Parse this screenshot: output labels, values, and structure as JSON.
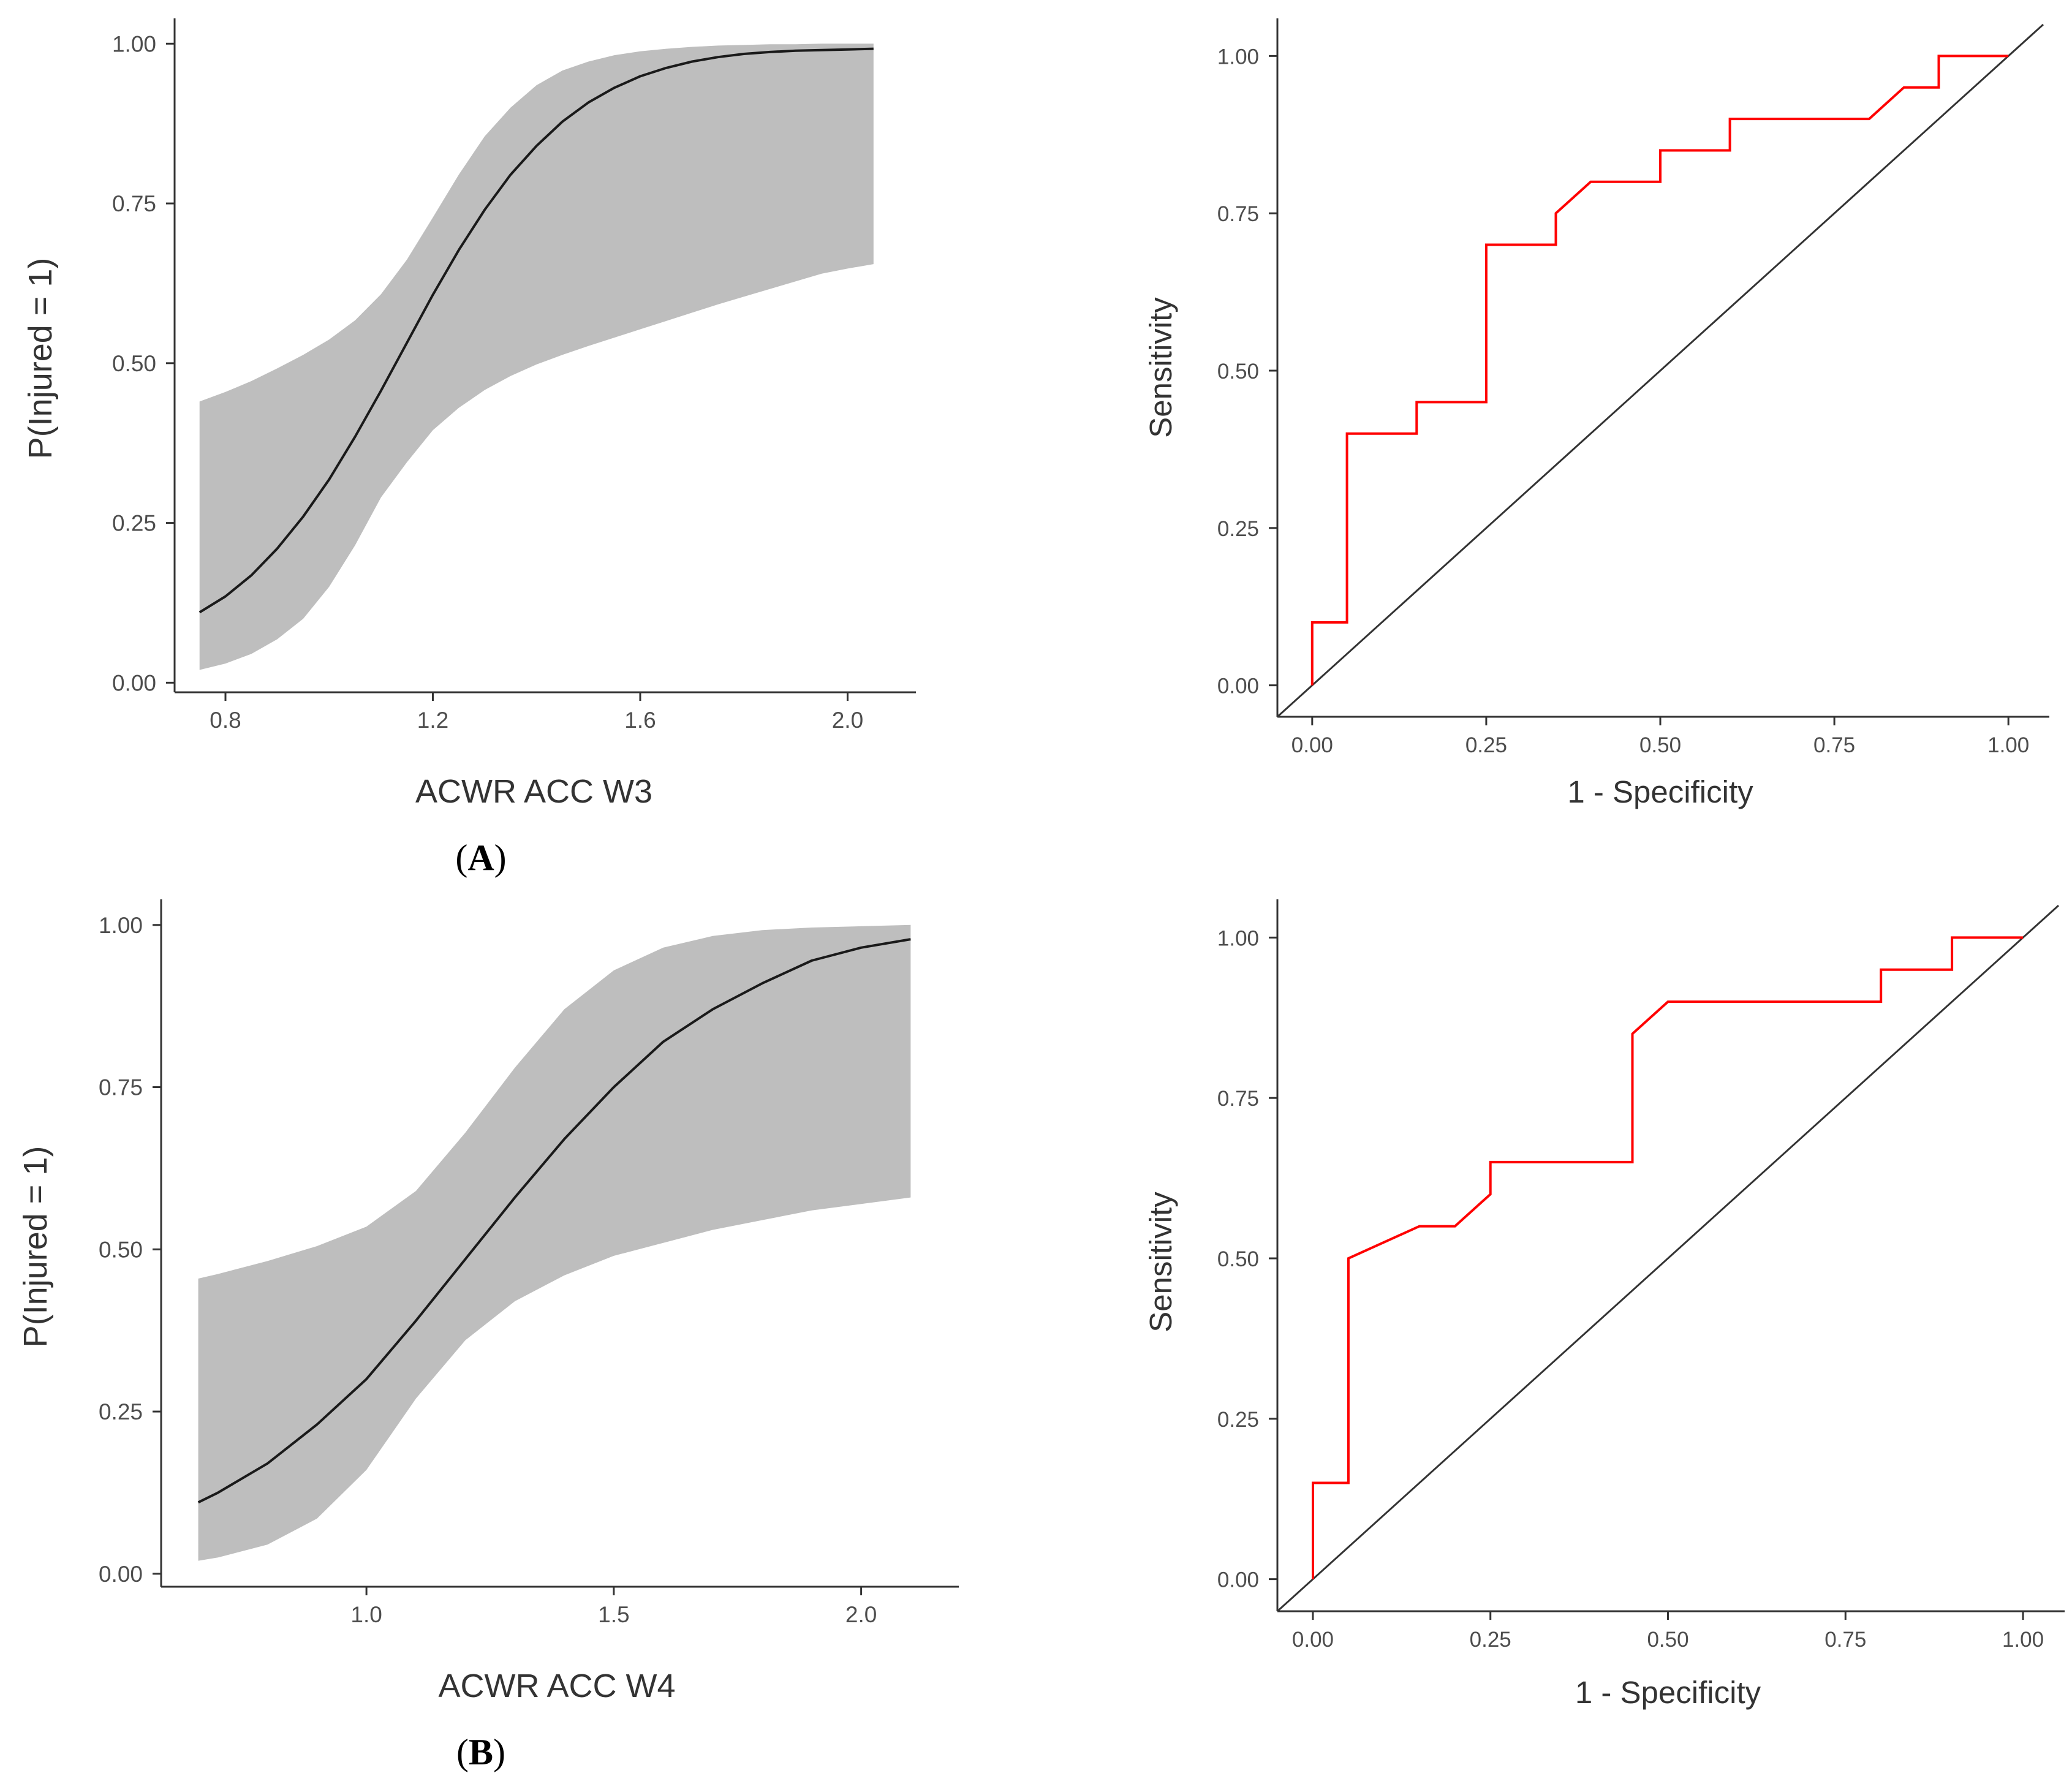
{
  "chart_data": [
    {
      "id": "logistic-a",
      "type": "area",
      "xlabel": "ACWR ACC W3",
      "ylabel": "P(Injured = 1)",
      "xlim": [
        0.67,
        2.12
      ],
      "ylim": [
        -0.015,
        1.03
      ],
      "xticks": [
        "0.8",
        "1.2",
        "1.6",
        "2.0"
      ],
      "xtick_values": [
        0.8,
        1.2,
        1.6,
        2.0
      ],
      "yticks": [
        "0.00",
        "0.25",
        "0.50",
        "0.75",
        "1.00"
      ],
      "ytick_values": [
        0,
        0.25,
        0.5,
        0.75,
        1.0
      ],
      "colors": {
        "line": "#1a1a1a",
        "band": "#bebebe",
        "axis": "#333333"
      },
      "series": [
        {
          "name": "fit",
          "x": [
            0.75,
            0.8,
            0.85,
            0.9,
            0.95,
            1.0,
            1.05,
            1.1,
            1.15,
            1.2,
            1.25,
            1.3,
            1.35,
            1.4,
            1.45,
            1.5,
            1.55,
            1.6,
            1.65,
            1.7,
            1.75,
            1.8,
            1.85,
            1.9,
            1.95,
            2.0,
            2.05
          ],
          "values": [
            0.11,
            0.135,
            0.168,
            0.21,
            0.26,
            0.318,
            0.385,
            0.457,
            0.532,
            0.607,
            0.677,
            0.74,
            0.795,
            0.84,
            0.878,
            0.908,
            0.931,
            0.949,
            0.962,
            0.972,
            0.979,
            0.984,
            0.987,
            0.989,
            0.99,
            0.991,
            0.992
          ]
        },
        {
          "name": "upper",
          "x": [
            0.75,
            0.8,
            0.85,
            0.9,
            0.95,
            1.0,
            1.05,
            1.1,
            1.15,
            1.2,
            1.25,
            1.3,
            1.35,
            1.4,
            1.45,
            1.5,
            1.55,
            1.6,
            1.65,
            1.7,
            1.75,
            1.8,
            1.85,
            1.9,
            1.95,
            2.0,
            2.05
          ],
          "values": [
            0.44,
            0.455,
            0.472,
            0.492,
            0.513,
            0.537,
            0.567,
            0.608,
            0.662,
            0.728,
            0.795,
            0.855,
            0.9,
            0.935,
            0.958,
            0.972,
            0.982,
            0.988,
            0.992,
            0.995,
            0.997,
            0.998,
            0.999,
            0.999,
            1.0,
            1.0,
            1.0
          ]
        },
        {
          "name": "lower",
          "x": [
            0.75,
            0.8,
            0.85,
            0.9,
            0.95,
            1.0,
            1.05,
            1.1,
            1.15,
            1.2,
            1.25,
            1.3,
            1.35,
            1.4,
            1.45,
            1.5,
            1.55,
            1.6,
            1.65,
            1.7,
            1.75,
            1.8,
            1.85,
            1.9,
            1.95,
            2.0,
            2.05
          ],
          "values": [
            0.02,
            0.03,
            0.045,
            0.068,
            0.1,
            0.15,
            0.215,
            0.29,
            0.345,
            0.395,
            0.43,
            0.458,
            0.48,
            0.498,
            0.513,
            0.527,
            0.54,
            0.553,
            0.566,
            0.579,
            0.592,
            0.604,
            0.616,
            0.628,
            0.64,
            0.648,
            0.655
          ]
        }
      ]
    },
    {
      "id": "roc-a",
      "type": "line",
      "xlabel": "1 - Specificity",
      "ylabel": "Sensitivity",
      "xlim": [
        -0.05,
        1.05
      ],
      "ylim": [
        -0.05,
        1.05
      ],
      "xticks": [
        "0.00",
        "0.25",
        "0.50",
        "0.75",
        "1.00"
      ],
      "xtick_values": [
        0,
        0.25,
        0.5,
        0.75,
        1.0
      ],
      "yticks": [
        "0.00",
        "0.25",
        "0.50",
        "0.75",
        "1.00"
      ],
      "ytick_values": [
        0,
        0.25,
        0.5,
        0.75,
        1.0
      ],
      "colors": {
        "line": "#ff0000",
        "diagonal": "#333333",
        "axis": "#333333"
      },
      "series": [
        {
          "name": "ROC",
          "x": [
            0,
            0,
            0.05,
            0.05,
            0.15,
            0.15,
            0.25,
            0.25,
            0.35,
            0.35,
            0.4,
            0.5,
            0.5,
            0.6,
            0.6,
            0.8,
            0.85,
            0.9,
            0.9,
            1.0
          ],
          "values": [
            0,
            0.1,
            0.1,
            0.4,
            0.4,
            0.45,
            0.45,
            0.7,
            0.7,
            0.75,
            0.8,
            0.8,
            0.85,
            0.85,
            0.9,
            0.9,
            0.95,
            0.95,
            1.0,
            1.0
          ]
        },
        {
          "name": "reference",
          "x": [
            -0.05,
            1.05
          ],
          "values": [
            -0.05,
            1.05
          ]
        }
      ]
    },
    {
      "id": "logistic-b",
      "type": "area",
      "xlabel": "ACWR ACC W4",
      "ylabel": "P(Injured = 1)",
      "xlim": [
        0.585,
        2.185
      ],
      "ylim": [
        -0.02,
        1.03
      ],
      "xticks": [
        "1.0",
        "1.5",
        "2.0"
      ],
      "xtick_values": [
        1.0,
        1.5,
        2.0
      ],
      "yticks": [
        "0.00",
        "0.25",
        "0.50",
        "0.75",
        "1.00"
      ],
      "ytick_values": [
        0,
        0.25,
        0.5,
        0.75,
        1.0
      ],
      "colors": {
        "line": "#1a1a1a",
        "band": "#bebebe",
        "axis": "#333333"
      },
      "series": [
        {
          "name": "fit",
          "x": [
            0.66,
            0.7,
            0.8,
            0.9,
            1.0,
            1.1,
            1.2,
            1.3,
            1.4,
            1.5,
            1.6,
            1.7,
            1.8,
            1.9,
            2.0,
            2.1
          ],
          "values": [
            0.11,
            0.125,
            0.17,
            0.23,
            0.3,
            0.39,
            0.485,
            0.58,
            0.67,
            0.75,
            0.82,
            0.87,
            0.91,
            0.945,
            0.965,
            0.978
          ]
        },
        {
          "name": "upper",
          "x": [
            0.66,
            0.7,
            0.8,
            0.9,
            1.0,
            1.1,
            1.2,
            1.3,
            1.4,
            1.5,
            1.6,
            1.7,
            1.8,
            1.9,
            2.0,
            2.1
          ],
          "values": [
            0.455,
            0.462,
            0.482,
            0.505,
            0.535,
            0.59,
            0.68,
            0.78,
            0.87,
            0.93,
            0.965,
            0.983,
            0.992,
            0.996,
            0.998,
            1.0
          ]
        },
        {
          "name": "lower",
          "x": [
            0.66,
            0.7,
            0.8,
            0.9,
            1.0,
            1.1,
            1.2,
            1.3,
            1.4,
            1.5,
            1.6,
            1.7,
            1.8,
            1.9,
            2.0,
            2.1
          ],
          "values": [
            0.02,
            0.025,
            0.045,
            0.085,
            0.16,
            0.27,
            0.36,
            0.42,
            0.46,
            0.49,
            0.51,
            0.53,
            0.545,
            0.56,
            0.57,
            0.58
          ]
        }
      ]
    },
    {
      "id": "roc-b",
      "type": "line",
      "xlabel": "1 - Specificity",
      "ylabel": "Sensitivity",
      "xlim": [
        -0.05,
        1.05
      ],
      "ylim": [
        -0.05,
        1.05
      ],
      "xticks": [
        "0.00",
        "0.25",
        "0.50",
        "0.75",
        "1.00"
      ],
      "xtick_values": [
        0,
        0.25,
        0.5,
        0.75,
        1.0
      ],
      "yticks": [
        "0.00",
        "0.25",
        "0.50",
        "0.75",
        "1.00"
      ],
      "ytick_values": [
        0,
        0.25,
        0.5,
        0.75,
        1.0
      ],
      "colors": {
        "line": "#ff0000",
        "diagonal": "#333333",
        "axis": "#333333"
      },
      "series": [
        {
          "name": "ROC",
          "x": [
            0,
            0,
            0.05,
            0.05,
            0.15,
            0.2,
            0.25,
            0.25,
            0.45,
            0.45,
            0.5,
            0.8,
            0.8,
            0.9,
            0.9,
            1.0
          ],
          "values": [
            0,
            0.15,
            0.15,
            0.5,
            0.55,
            0.55,
            0.6,
            0.65,
            0.65,
            0.85,
            0.9,
            0.9,
            0.95,
            0.95,
            1.0,
            1.0
          ]
        },
        {
          "name": "reference",
          "x": [
            -0.05,
            1.05
          ],
          "values": [
            -0.05,
            1.05
          ]
        }
      ]
    }
  ],
  "panel_labels": {
    "a": {
      "open": "(",
      "letter": "A",
      "close": ")"
    },
    "b": {
      "open": "(",
      "letter": "B",
      "close": ")"
    }
  }
}
